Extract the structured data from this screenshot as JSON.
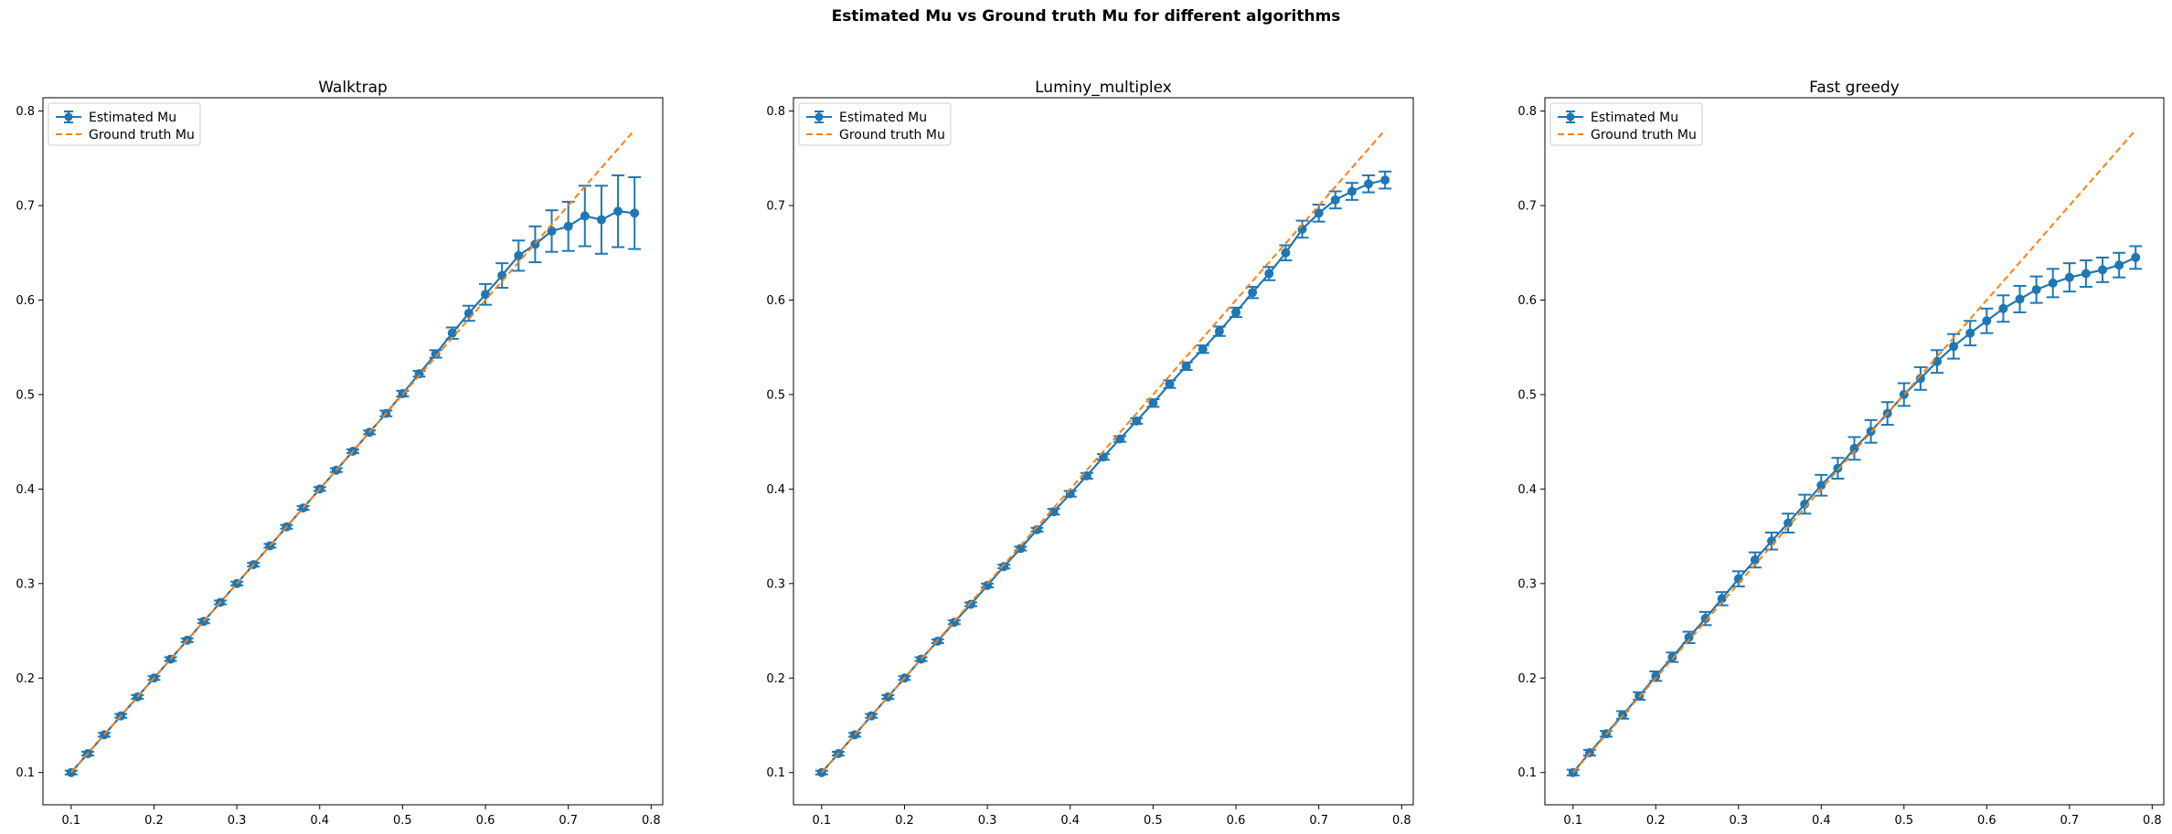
{
  "figure": {
    "suptitle": "Estimated Mu vs Ground truth Mu for different algorithms"
  },
  "colors": {
    "estimated": "#1f77b4",
    "ground_truth": "#ff7f0e",
    "axes": "#000000",
    "background": "#ffffff"
  },
  "chart_data": [
    {
      "type": "line",
      "title": "Walktrap",
      "xlabel": "",
      "ylabel": "",
      "xlim": [
        0.066,
        0.814
      ],
      "ylim": [
        0.0659,
        0.8141
      ],
      "xticks": [
        "0.1",
        "0.2",
        "0.3",
        "0.4",
        "0.5",
        "0.6",
        "0.7",
        "0.8"
      ],
      "yticks": [
        "0.1",
        "0.2",
        "0.3",
        "0.4",
        "0.5",
        "0.6",
        "0.7",
        "0.8"
      ],
      "grid": false,
      "legend_position": "upper left",
      "legend": [
        "Estimated Mu",
        "Ground truth Mu"
      ],
      "x": [
        0.1,
        0.12,
        0.14,
        0.16,
        0.18,
        0.2,
        0.22,
        0.24,
        0.26,
        0.28,
        0.3,
        0.32,
        0.34,
        0.36,
        0.38,
        0.4,
        0.42,
        0.44,
        0.46,
        0.48,
        0.5,
        0.52,
        0.54,
        0.56,
        0.58,
        0.6,
        0.62,
        0.64,
        0.66,
        0.68,
        0.7,
        0.72,
        0.74,
        0.76,
        0.78
      ],
      "series": [
        {
          "name": "Estimated Mu",
          "style": "solid line with circle markers and error bars",
          "values": [
            0.1,
            0.12,
            0.14,
            0.16,
            0.18,
            0.2,
            0.22,
            0.24,
            0.26,
            0.28,
            0.3,
            0.32,
            0.34,
            0.36,
            0.38,
            0.4,
            0.42,
            0.44,
            0.46,
            0.48,
            0.501,
            0.522,
            0.543,
            0.565,
            0.586,
            0.606,
            0.626,
            0.647,
            0.659,
            0.673,
            0.678,
            0.689,
            0.685,
            0.694,
            0.692
          ],
          "errors": [
            0.002,
            0.002,
            0.002,
            0.002,
            0.002,
            0.002,
            0.002,
            0.002,
            0.002,
            0.002,
            0.002,
            0.002,
            0.002,
            0.002,
            0.002,
            0.002,
            0.002,
            0.002,
            0.002,
            0.003,
            0.003,
            0.003,
            0.004,
            0.006,
            0.008,
            0.011,
            0.013,
            0.016,
            0.019,
            0.022,
            0.026,
            0.032,
            0.036,
            0.038,
            0.038
          ]
        },
        {
          "name": "Ground truth Mu",
          "style": "dashed line",
          "values": [
            0.1,
            0.12,
            0.14,
            0.16,
            0.18,
            0.2,
            0.22,
            0.24,
            0.26,
            0.28,
            0.3,
            0.32,
            0.34,
            0.36,
            0.38,
            0.4,
            0.42,
            0.44,
            0.46,
            0.48,
            0.5,
            0.52,
            0.54,
            0.56,
            0.58,
            0.6,
            0.62,
            0.64,
            0.66,
            0.68,
            0.7,
            0.72,
            0.74,
            0.76,
            0.78
          ]
        }
      ]
    },
    {
      "type": "line",
      "title": "Luminy_multiplex",
      "xlabel": "",
      "ylabel": "",
      "xlim": [
        0.066,
        0.814
      ],
      "ylim": [
        0.0659,
        0.8141
      ],
      "xticks": [
        "0.1",
        "0.2",
        "0.3",
        "0.4",
        "0.5",
        "0.6",
        "0.7",
        "0.8"
      ],
      "yticks": [
        "0.1",
        "0.2",
        "0.3",
        "0.4",
        "0.5",
        "0.6",
        "0.7",
        "0.8"
      ],
      "grid": false,
      "legend_position": "upper left",
      "legend": [
        "Estimated Mu",
        "Ground truth Mu"
      ],
      "x": [
        0.1,
        0.12,
        0.14,
        0.16,
        0.18,
        0.2,
        0.22,
        0.24,
        0.26,
        0.28,
        0.3,
        0.32,
        0.34,
        0.36,
        0.38,
        0.4,
        0.42,
        0.44,
        0.46,
        0.48,
        0.5,
        0.52,
        0.54,
        0.56,
        0.58,
        0.6,
        0.62,
        0.64,
        0.66,
        0.68,
        0.7,
        0.72,
        0.74,
        0.76,
        0.78
      ],
      "series": [
        {
          "name": "Estimated Mu",
          "style": "solid line with circle markers and error bars",
          "values": [
            0.1,
            0.12,
            0.14,
            0.16,
            0.18,
            0.2,
            0.22,
            0.239,
            0.259,
            0.278,
            0.298,
            0.318,
            0.337,
            0.357,
            0.376,
            0.395,
            0.414,
            0.434,
            0.453,
            0.472,
            0.491,
            0.511,
            0.53,
            0.548,
            0.567,
            0.587,
            0.608,
            0.628,
            0.65,
            0.675,
            0.692,
            0.706,
            0.715,
            0.723,
            0.727
          ],
          "errors": [
            0.002,
            0.002,
            0.002,
            0.002,
            0.002,
            0.002,
            0.002,
            0.002,
            0.002,
            0.002,
            0.002,
            0.002,
            0.002,
            0.002,
            0.003,
            0.003,
            0.003,
            0.003,
            0.003,
            0.003,
            0.004,
            0.004,
            0.004,
            0.004,
            0.005,
            0.005,
            0.006,
            0.007,
            0.008,
            0.009,
            0.009,
            0.009,
            0.009,
            0.009,
            0.009
          ]
        },
        {
          "name": "Ground truth Mu",
          "style": "dashed line",
          "values": [
            0.1,
            0.12,
            0.14,
            0.16,
            0.18,
            0.2,
            0.22,
            0.24,
            0.26,
            0.28,
            0.3,
            0.32,
            0.34,
            0.36,
            0.38,
            0.4,
            0.42,
            0.44,
            0.46,
            0.48,
            0.5,
            0.52,
            0.54,
            0.56,
            0.58,
            0.6,
            0.62,
            0.64,
            0.66,
            0.68,
            0.7,
            0.72,
            0.74,
            0.76,
            0.78
          ]
        }
      ]
    },
    {
      "type": "line",
      "title": "Fast greedy",
      "xlabel": "",
      "ylabel": "",
      "xlim": [
        0.066,
        0.814
      ],
      "ylim": [
        0.0659,
        0.8141
      ],
      "xticks": [
        "0.1",
        "0.2",
        "0.3",
        "0.4",
        "0.5",
        "0.6",
        "0.7",
        "0.8"
      ],
      "yticks": [
        "0.1",
        "0.2",
        "0.3",
        "0.4",
        "0.5",
        "0.6",
        "0.7",
        "0.8"
      ],
      "grid": false,
      "legend_position": "upper left",
      "legend": [
        "Estimated Mu",
        "Ground truth Mu"
      ],
      "x": [
        0.1,
        0.12,
        0.14,
        0.16,
        0.18,
        0.2,
        0.22,
        0.24,
        0.26,
        0.28,
        0.3,
        0.32,
        0.34,
        0.36,
        0.38,
        0.4,
        0.42,
        0.44,
        0.46,
        0.48,
        0.5,
        0.52,
        0.54,
        0.56,
        0.58,
        0.6,
        0.62,
        0.64,
        0.66,
        0.68,
        0.7,
        0.72,
        0.74,
        0.76,
        0.78
      ],
      "series": [
        {
          "name": "Estimated Mu",
          "style": "solid line with circle markers and error bars",
          "values": [
            0.1,
            0.121,
            0.141,
            0.161,
            0.181,
            0.202,
            0.222,
            0.243,
            0.263,
            0.284,
            0.305,
            0.325,
            0.345,
            0.364,
            0.384,
            0.404,
            0.422,
            0.443,
            0.461,
            0.48,
            0.5,
            0.517,
            0.535,
            0.551,
            0.565,
            0.578,
            0.591,
            0.601,
            0.611,
            0.618,
            0.624,
            0.628,
            0.632,
            0.637,
            0.645
          ],
          "errors": [
            0.003,
            0.003,
            0.003,
            0.004,
            0.004,
            0.005,
            0.005,
            0.006,
            0.007,
            0.007,
            0.008,
            0.008,
            0.009,
            0.01,
            0.01,
            0.011,
            0.011,
            0.012,
            0.012,
            0.012,
            0.012,
            0.012,
            0.012,
            0.013,
            0.013,
            0.013,
            0.014,
            0.014,
            0.014,
            0.015,
            0.015,
            0.014,
            0.013,
            0.013,
            0.012
          ]
        },
        {
          "name": "Ground truth Mu",
          "style": "dashed line",
          "values": [
            0.1,
            0.12,
            0.14,
            0.16,
            0.18,
            0.2,
            0.22,
            0.24,
            0.26,
            0.28,
            0.3,
            0.32,
            0.34,
            0.36,
            0.38,
            0.4,
            0.42,
            0.44,
            0.46,
            0.48,
            0.5,
            0.52,
            0.54,
            0.56,
            0.58,
            0.6,
            0.62,
            0.64,
            0.66,
            0.68,
            0.7,
            0.72,
            0.74,
            0.76,
            0.78
          ]
        }
      ]
    }
  ]
}
